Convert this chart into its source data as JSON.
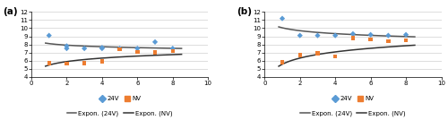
{
  "panel_a": {
    "x_24v": [
      1,
      2,
      2,
      3,
      4,
      4,
      5,
      6,
      7,
      8
    ],
    "y_24v": [
      9.1,
      7.5,
      7.8,
      7.5,
      7.5,
      7.6,
      7.5,
      7.5,
      8.3,
      7.5
    ],
    "x_nv": [
      1,
      2,
      3,
      4,
      5,
      6,
      7,
      8
    ],
    "y_nv": [
      5.7,
      5.6,
      5.7,
      5.9,
      7.4,
      7.1,
      7.0,
      7.2
    ],
    "trend_24v_a": -0.28,
    "trend_24v_b": 8.1,
    "trend_nv_a": 0.62,
    "trend_nv_b": 5.45,
    "ylim": [
      4,
      12
    ],
    "yticks": [
      4,
      5,
      6,
      7,
      8,
      9,
      10,
      11,
      12
    ],
    "xlim": [
      0,
      10
    ],
    "xticks": [
      0,
      2,
      4,
      6,
      8,
      10
    ]
  },
  "panel_b": {
    "x_24v": [
      1,
      2,
      3,
      4,
      5,
      6,
      7,
      8
    ],
    "y_24v": [
      11.2,
      9.1,
      9.1,
      9.1,
      9.3,
      9.2,
      9.1,
      9.2
    ],
    "x_nv": [
      1,
      2,
      3,
      4,
      5,
      6,
      7,
      8
    ],
    "y_nv": [
      5.8,
      6.7,
      6.9,
      6.5,
      8.8,
      8.6,
      8.4,
      8.5
    ],
    "trend_24v_a": -0.52,
    "trend_24v_b": 10.05,
    "trend_nv_a": 1.1,
    "trend_nv_b": 5.55,
    "ylim": [
      4,
      12
    ],
    "yticks": [
      4,
      5,
      6,
      7,
      8,
      9,
      10,
      11,
      12
    ],
    "xlim": [
      0,
      10
    ],
    "xticks": [
      0,
      2,
      4,
      6,
      8,
      10
    ]
  },
  "color_24v": "#5b9bd5",
  "color_nv": "#ed7d31",
  "color_exp_24v": "#555555",
  "color_exp_nv": "#333333",
  "label_24v": "24V",
  "label_nv": "NV",
  "label_exp_24v": "Expon. (24V)",
  "label_exp_nv": "Expon. (NV)",
  "panel_a_label": "(a)",
  "panel_b_label": "(b)"
}
